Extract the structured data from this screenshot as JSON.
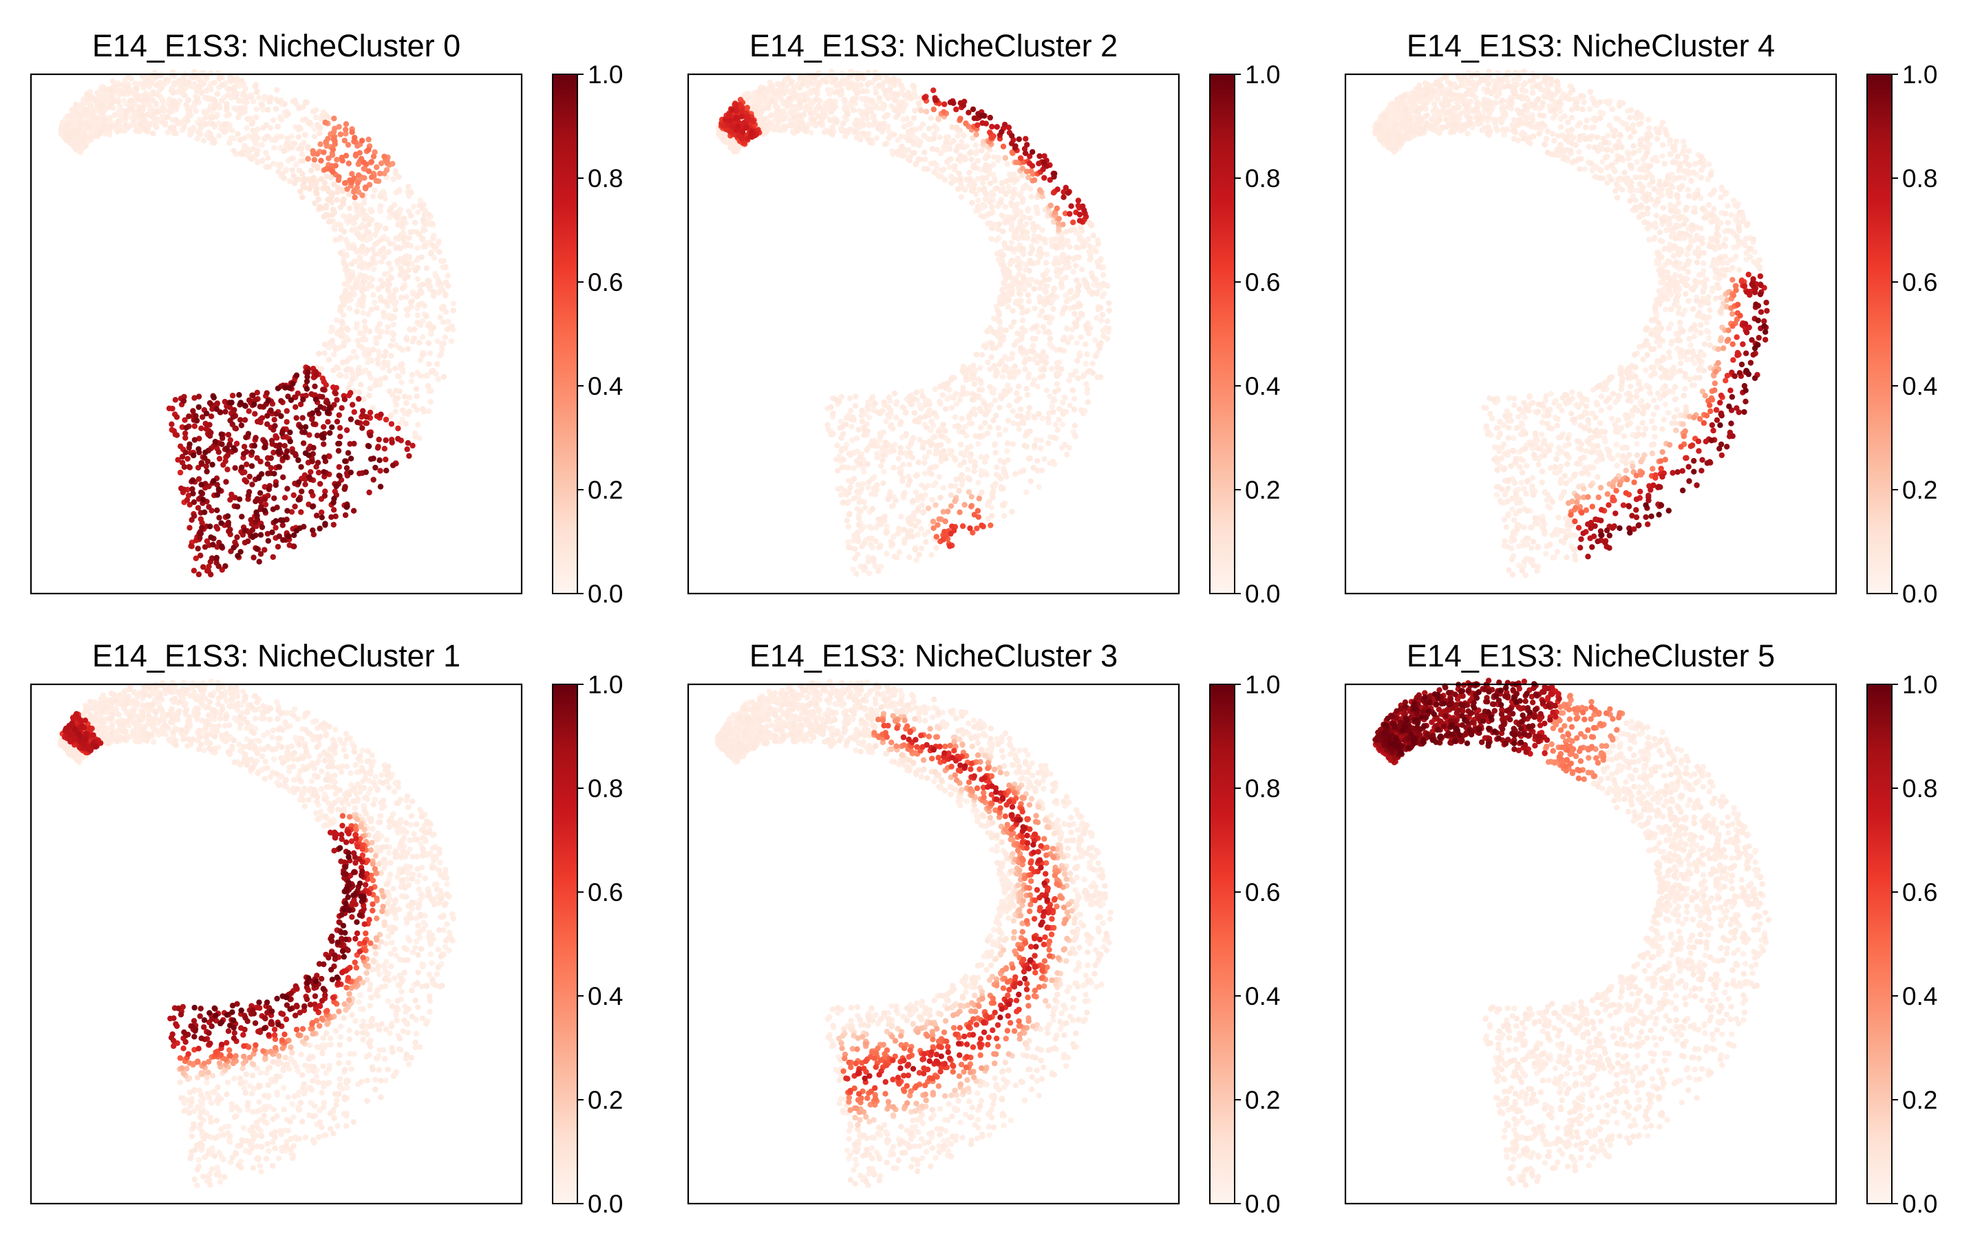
{
  "figure": {
    "colormap": "Reds",
    "colormap_stops": [
      "#fff5f0",
      "#fee0d2",
      "#fcbba1",
      "#fc9272",
      "#fb6a4a",
      "#ef3b2c",
      "#cb181d",
      "#a50f15",
      "#67000d"
    ]
  },
  "chart_data": [
    {
      "type": "scatter",
      "title": "E14_E1S3: NicheCluster 0",
      "xlabel": "",
      "ylabel": "",
      "grid": false,
      "colorbar": {
        "range": [
          0.0,
          1.0
        ],
        "ticks": [
          "0.0",
          "0.2",
          "0.4",
          "0.6",
          "0.8",
          "1.0"
        ]
      },
      "hotspots": [
        {
          "region": "lower arc",
          "t_range": [
            0.72,
            1.0
          ],
          "value": 1.0
        },
        {
          "region": "upper shoulder",
          "t_range": [
            0.38,
            0.46
          ],
          "value": 0.5
        }
      ]
    },
    {
      "type": "scatter",
      "title": "E14_E1S3: NicheCluster 2",
      "xlabel": "",
      "ylabel": "",
      "grid": false,
      "colorbar": {
        "range": [
          0.0,
          1.0
        ],
        "ticks": [
          "0.0",
          "0.2",
          "0.4",
          "0.6",
          "0.8",
          "1.0"
        ]
      },
      "hotspots": [
        {
          "region": "top outer edge",
          "t_range": [
            0.32,
            0.52
          ],
          "value": 0.95
        },
        {
          "region": "hook tip",
          "t_range": [
            0.03,
            0.09
          ],
          "value": 0.8
        },
        {
          "region": "lower outer edge",
          "t_range": [
            0.82,
            0.88
          ],
          "value": 0.7
        }
      ]
    },
    {
      "type": "scatter",
      "title": "E14_E1S3: NicheCluster 4",
      "xlabel": "",
      "ylabel": "",
      "grid": false,
      "colorbar": {
        "range": [
          0.0,
          1.0
        ],
        "ticks": [
          "0.0",
          "0.2",
          "0.4",
          "0.6",
          "0.8",
          "1.0"
        ]
      },
      "hotspots": [
        {
          "region": "right outer edge",
          "t_range": [
            0.58,
            0.9
          ],
          "value": 1.0
        }
      ]
    },
    {
      "type": "scatter",
      "title": "E14_E1S3: NicheCluster 1",
      "xlabel": "",
      "ylabel": "",
      "grid": false,
      "colorbar": {
        "range": [
          0.0,
          1.0
        ],
        "ticks": [
          "0.0",
          "0.2",
          "0.4",
          "0.6",
          "0.8",
          "1.0"
        ]
      },
      "hotspots": [
        {
          "region": "inner edge",
          "t_range": [
            0.45,
            1.0
          ],
          "value": 1.0
        },
        {
          "region": "hook tip",
          "t_range": [
            0.03,
            0.08
          ],
          "value": 0.9
        }
      ]
    },
    {
      "type": "scatter",
      "title": "E14_E1S3: NicheCluster 3",
      "xlabel": "",
      "ylabel": "",
      "grid": false,
      "colorbar": {
        "range": [
          0.0,
          1.0
        ],
        "ticks": [
          "0.0",
          "0.2",
          "0.4",
          "0.6",
          "0.8",
          "1.0"
        ]
      },
      "hotspots": [
        {
          "region": "middle band",
          "t_range": [
            0.28,
            0.98
          ],
          "value": 0.85
        }
      ]
    },
    {
      "type": "scatter",
      "title": "E14_E1S3: NicheCluster 5",
      "xlabel": "",
      "ylabel": "",
      "grid": false,
      "colorbar": {
        "range": [
          0.0,
          1.0
        ],
        "ticks": [
          "0.0",
          "0.2",
          "0.4",
          "0.6",
          "0.8",
          "1.0"
        ]
      },
      "hotspots": [
        {
          "region": "hook",
          "t_range": [
            0.0,
            0.3
          ],
          "value": 1.0
        },
        {
          "region": "hook transition",
          "t_range": [
            0.3,
            0.36
          ],
          "value": 0.55
        }
      ]
    }
  ]
}
